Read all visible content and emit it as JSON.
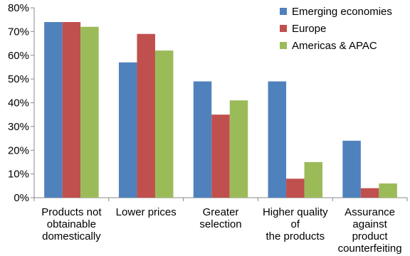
{
  "chart_data": {
    "type": "bar",
    "categories": [
      [
        "Products not",
        "obtainable",
        "domestically"
      ],
      [
        "Lower prices"
      ],
      [
        "Greater",
        "selection"
      ],
      [
        "Higher quality",
        "of",
        "the products"
      ],
      [
        "Assurance",
        "against",
        "product",
        "counterfeiting"
      ]
    ],
    "series": [
      {
        "name": "Emerging economies",
        "color": "#4F81BD",
        "values": [
          74,
          57,
          49,
          49,
          24
        ]
      },
      {
        "name": "Europe",
        "color": "#C0504D",
        "values": [
          74,
          69,
          35,
          8,
          4
        ]
      },
      {
        "name": "Americas & APAC",
        "color": "#9BBB59",
        "values": [
          72,
          62,
          41,
          15,
          6
        ]
      }
    ],
    "yticks": [
      "0%",
      "10%",
      "20%",
      "30%",
      "40%",
      "50%",
      "60%",
      "70%",
      "80%"
    ],
    "ylim": [
      0,
      80
    ],
    "grid": false,
    "legend_position": "top-right"
  }
}
